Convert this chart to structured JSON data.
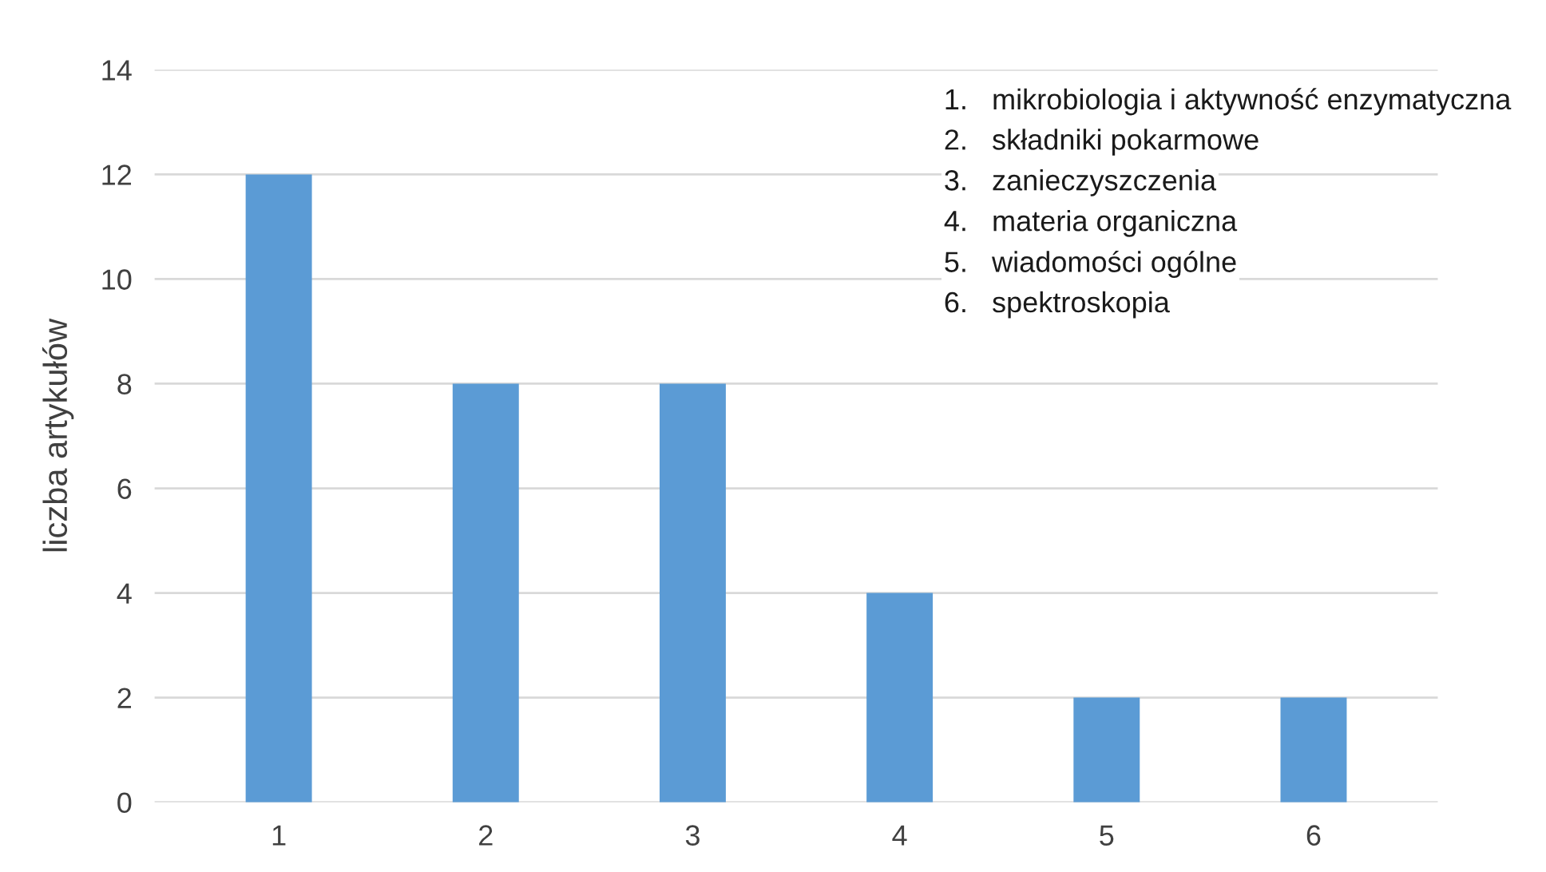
{
  "chart_data": {
    "type": "bar",
    "ylabel": "liczba artykułów",
    "categories": [
      "1",
      "2",
      "3",
      "4",
      "5",
      "6"
    ],
    "values": [
      12,
      8,
      8,
      4,
      2,
      2
    ],
    "color": "#5b9bd5",
    "ylim": [
      0,
      14
    ],
    "yticks": [
      0,
      2,
      4,
      6,
      8,
      10,
      12,
      14
    ],
    "grid": "y",
    "annotations": [
      "1.   mikrobiologia i aktywność enzymatyczna",
      "2.   składniki pokarmowe",
      "3.   zanieczyszczenia",
      "4.   materia organiczna",
      "5.   wiadomości ogólne",
      "6.   spektroskopia"
    ]
  }
}
